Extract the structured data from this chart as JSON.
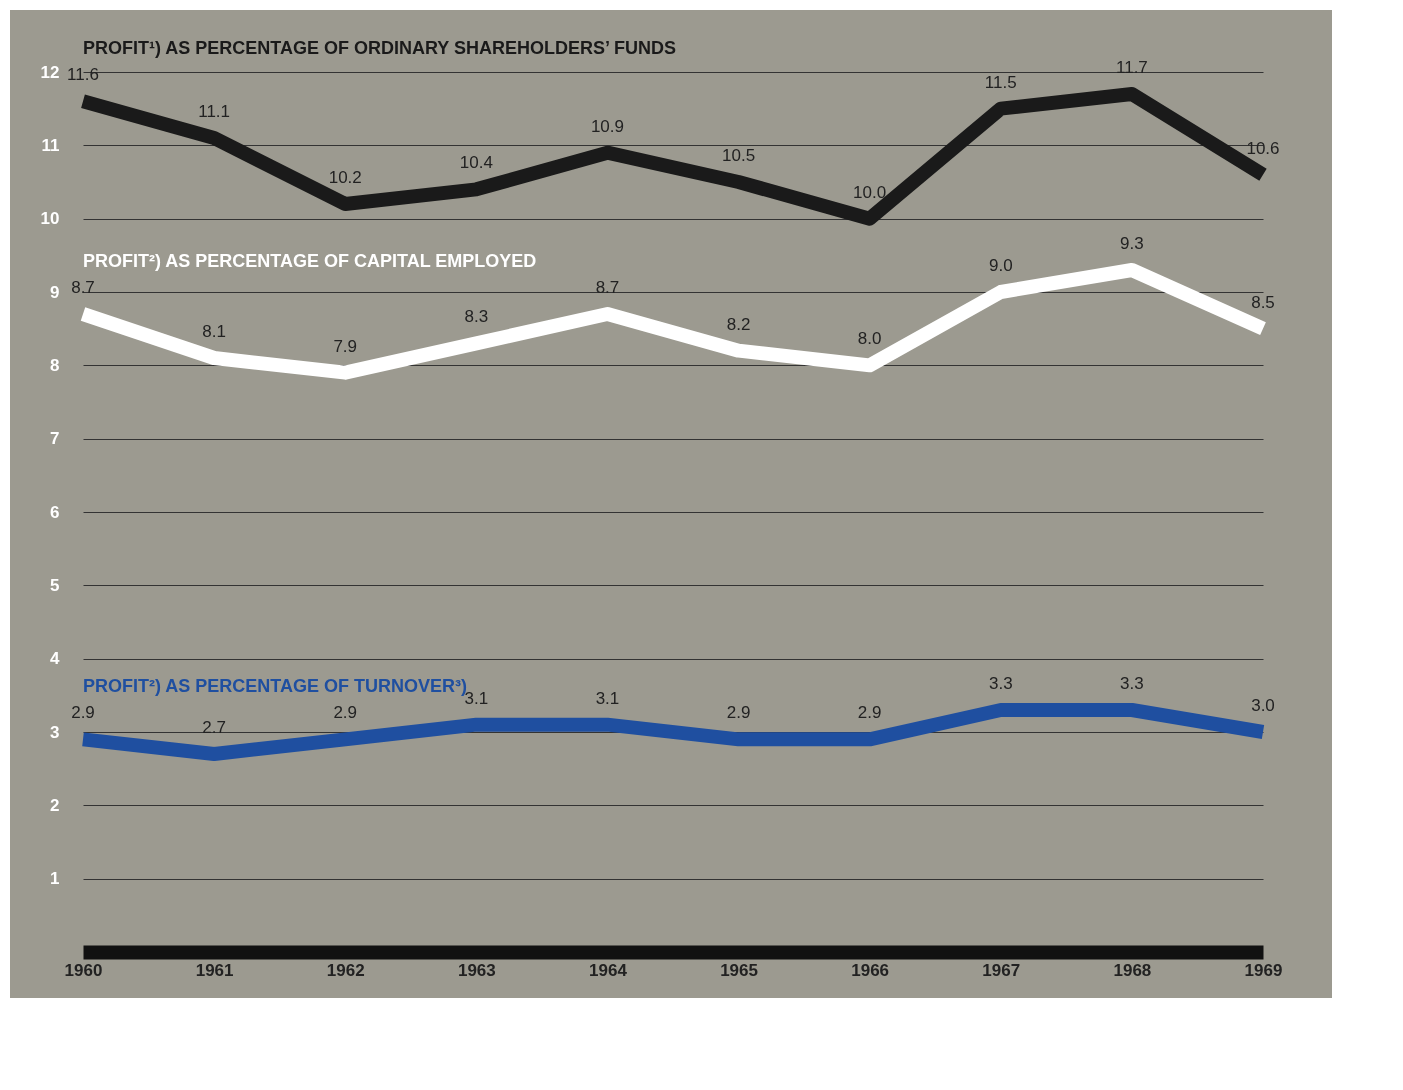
{
  "chart_data": {
    "type": "line",
    "categories": [
      "1960",
      "1961",
      "1962",
      "1963",
      "1964",
      "1965",
      "1966",
      "1967",
      "1968",
      "1969"
    ],
    "series": [
      {
        "name": "PROFIT¹) AS PERCENTAGE OF ORDINARY SHAREHOLDERS’ FUNDS",
        "color": "#1a1a1a",
        "values": [
          11.6,
          11.1,
          10.2,
          10.4,
          10.9,
          10.5,
          10.0,
          11.5,
          11.7,
          10.6
        ],
        "value_labels": [
          "11.6",
          "11.1",
          "10.2",
          "10.4",
          "10.9",
          "10.5",
          "10.0",
          "11.5",
          "11.7",
          "10.6"
        ]
      },
      {
        "name": "PROFIT²) AS PERCENTAGE OF CAPITAL EMPLOYED",
        "color": "#ffffff",
        "values": [
          8.7,
          8.1,
          7.9,
          8.3,
          8.7,
          8.2,
          8.0,
          9.0,
          9.3,
          8.5
        ],
        "value_labels": [
          "8.7",
          "8.1",
          "7.9",
          "8.3",
          "8.7",
          "8.2",
          "8.0",
          "9.0",
          "9.3",
          "8.5"
        ]
      },
      {
        "name": "PROFIT²) AS PERCENTAGE OF TURNOVER³)",
        "color": "#1f4fa0",
        "values": [
          2.9,
          2.7,
          2.9,
          3.1,
          3.1,
          2.9,
          2.9,
          3.3,
          3.3,
          3.0
        ],
        "value_labels": [
          "2.9",
          "2.7",
          "2.9",
          "3.1",
          "3.1",
          "2.9",
          "2.9",
          "3.3",
          "3.3",
          "3.0"
        ]
      }
    ],
    "ylim": [
      0,
      12
    ],
    "yticks": [
      1,
      2,
      3,
      4,
      5,
      6,
      7,
      8,
      9,
      10,
      11,
      12
    ],
    "grid": "y",
    "marker": "none",
    "line_style": "solid"
  }
}
